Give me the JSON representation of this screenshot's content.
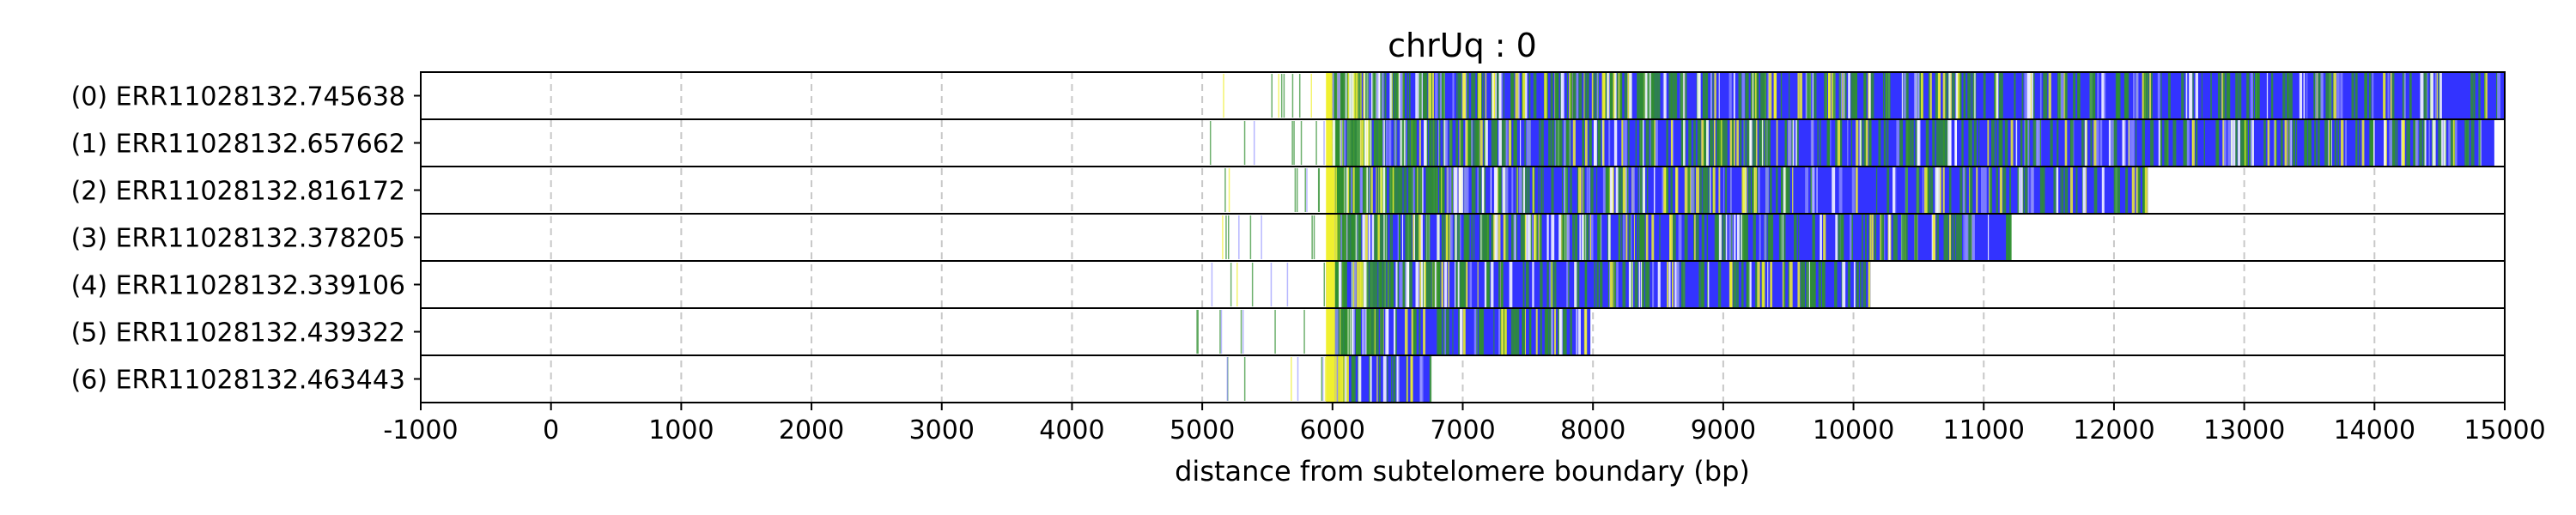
{
  "chart_data": {
    "type": "heatmap",
    "title": "chrUq : 0",
    "xlabel": "distance from subtelomere boundary (bp)",
    "ylabel": "",
    "xlim": [
      -1000,
      15000
    ],
    "xticks": [
      "-1000",
      "0",
      "1000",
      "2000",
      "3000",
      "4000",
      "5000",
      "6000",
      "7000",
      "8000",
      "9000",
      "10000",
      "11000",
      "12000",
      "13000",
      "14000",
      "15000"
    ],
    "grid": "vertical dashed",
    "colors": {
      "telomere": "#3333ff",
      "variant_green": "#2f8f2f",
      "variant_yellow": "#f0f030",
      "gap": "#e8e8e8",
      "frame": "#000000",
      "grid": "#c8c8c8"
    },
    "reads": [
      {
        "label": "(0) ERR11028132.745638",
        "start": 5950,
        "telomere_start": 6000,
        "end": 15000
      },
      {
        "label": "(1) ERR11028132.657662",
        "start": 5950,
        "telomere_start": 6000,
        "end": 14920
      },
      {
        "label": "(2) ERR11028132.816172",
        "start": 5950,
        "telomere_start": 6020,
        "end": 12260
      },
      {
        "label": "(3) ERR11028132.378205",
        "start": 5950,
        "telomere_start": 6020,
        "end": 11200
      },
      {
        "label": "(4) ERR11028132.339106",
        "start": 5950,
        "telomere_start": 6020,
        "end": 10130
      },
      {
        "label": "(5) ERR11028132.439322",
        "start": 5950,
        "telomere_start": 6020,
        "end": 7980
      },
      {
        "label": "(6) ERR11028132.463443",
        "start": 5950,
        "telomere_start": 6020,
        "end": 6750
      }
    ]
  }
}
